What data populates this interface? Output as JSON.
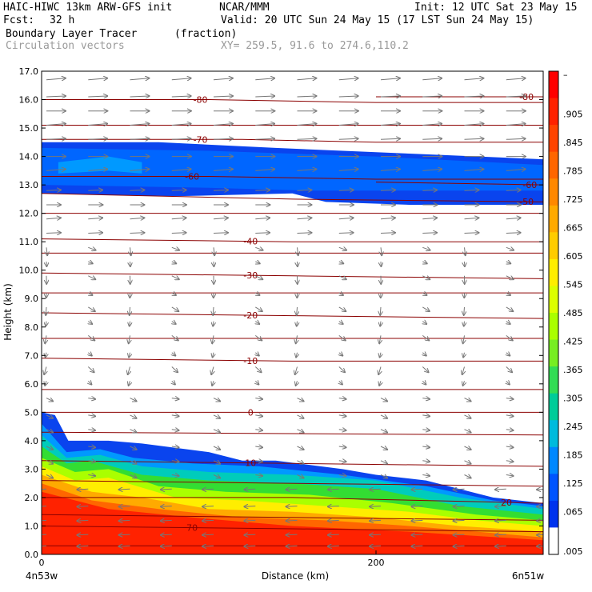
{
  "header": {
    "model": "HAIC-HIWC 13km ARW-GFS init",
    "org": "NCAR/MMM",
    "init": "Init: 12 UTC Sat 23 May 15",
    "fcst_label": "Fcst:",
    "fcst_value": "32 h",
    "valid": "Valid: 20 UTC Sun 24 May 15 (17 LST Sun 24 May 15)",
    "field": "Boundary Layer Tracer",
    "field_units": "(fraction)",
    "vectors": "Circulation vectors",
    "xy": "XY= 259.5, 91.6 to 274.6,110.2"
  },
  "chart_data": {
    "type": "heatmap",
    "xlabel": "Distance (km)",
    "ylabel": "Height (km)",
    "xlim": [
      0,
      300
    ],
    "ylim": [
      0,
      17
    ],
    "x_ticks": [
      {
        "value": 0,
        "label": "0"
      },
      {
        "value": 200,
        "label": "200"
      }
    ],
    "x_end_labels": [
      "4n53w",
      "6n51w"
    ],
    "y_ticks": [
      "0.0",
      "1.0",
      "2.0",
      "3.0",
      "4.0",
      "5.0",
      "6.0",
      "7.0",
      "8.0",
      "9.0",
      "10.0",
      "11.0",
      "12.0",
      "13.0",
      "14.0",
      "15.0",
      "16.0",
      "17.0"
    ],
    "colorbar": {
      "labels": [
        "–",
        ".905",
        ".845",
        ".785",
        ".725",
        ".665",
        ".605",
        ".545",
        ".485",
        ".425",
        ".365",
        ".305",
        ".245",
        ".185",
        ".125",
        ".065",
        ".005"
      ],
      "colors": [
        "#ff0000",
        "#ff2200",
        "#ff4400",
        "#ff6600",
        "#ff8800",
        "#ffaa00",
        "#ffcc00",
        "#ffee00",
        "#ddff00",
        "#aaff00",
        "#77ee22",
        "#33dd55",
        "#00cc99",
        "#00bbdd",
        "#0088ff",
        "#0055ff",
        "#0033ee",
        "#ffffff"
      ]
    },
    "tracer_layers": [
      {
        "color": "#0a44ee",
        "top": [
          [
            0,
            5.0
          ],
          [
            8,
            4.9
          ],
          [
            16,
            4.0
          ],
          [
            40,
            4.0
          ],
          [
            60,
            3.9
          ],
          [
            100,
            3.6
          ],
          [
            120,
            3.3
          ],
          [
            140,
            3.3
          ],
          [
            180,
            3.0
          ],
          [
            200,
            2.8
          ],
          [
            230,
            2.6
          ],
          [
            250,
            2.3
          ],
          [
            270,
            2.0
          ],
          [
            300,
            1.8
          ]
        ]
      },
      {
        "color": "#0099ff",
        "top": [
          [
            0,
            4.6
          ],
          [
            15,
            3.6
          ],
          [
            35,
            3.7
          ],
          [
            55,
            3.4
          ],
          [
            90,
            3.2
          ],
          [
            130,
            3.1
          ],
          [
            180,
            2.8
          ],
          [
            230,
            2.4
          ],
          [
            270,
            1.9
          ],
          [
            300,
            1.7
          ]
        ]
      },
      {
        "color": "#00ccbb",
        "top": [
          [
            0,
            4.2
          ],
          [
            15,
            3.4
          ],
          [
            35,
            3.5
          ],
          [
            60,
            3.1
          ],
          [
            100,
            2.9
          ],
          [
            150,
            2.8
          ],
          [
            200,
            2.6
          ],
          [
            250,
            2.0
          ],
          [
            300,
            1.6
          ]
        ]
      },
      {
        "color": "#33dd33",
        "top": [
          [
            0,
            3.8
          ],
          [
            15,
            3.2
          ],
          [
            30,
            3.3
          ],
          [
            60,
            2.8
          ],
          [
            100,
            2.6
          ],
          [
            150,
            2.5
          ],
          [
            200,
            2.3
          ],
          [
            250,
            1.7
          ],
          [
            300,
            1.4
          ]
        ]
      },
      {
        "color": "#aaff00",
        "top": [
          [
            0,
            3.4
          ],
          [
            20,
            2.9
          ],
          [
            40,
            3.0
          ],
          [
            70,
            2.4
          ],
          [
            110,
            2.2
          ],
          [
            160,
            2.1
          ],
          [
            210,
            1.8
          ],
          [
            260,
            1.4
          ],
          [
            300,
            1.2
          ]
        ]
      },
      {
        "color": "#ffee00",
        "top": [
          [
            0,
            3.1
          ],
          [
            20,
            2.6
          ],
          [
            40,
            2.7
          ],
          [
            80,
            2.0
          ],
          [
            120,
            1.9
          ],
          [
            170,
            1.7
          ],
          [
            220,
            1.5
          ],
          [
            260,
            1.2
          ],
          [
            300,
            1.0
          ]
        ]
      },
      {
        "color": "#ffaa00",
        "top": [
          [
            0,
            2.8
          ],
          [
            30,
            2.2
          ],
          [
            60,
            2.0
          ],
          [
            100,
            1.6
          ],
          [
            150,
            1.5
          ],
          [
            200,
            1.3
          ],
          [
            250,
            1.0
          ],
          [
            300,
            0.8
          ]
        ]
      },
      {
        "color": "#ff6600",
        "top": [
          [
            0,
            2.5
          ],
          [
            30,
            1.9
          ],
          [
            70,
            1.6
          ],
          [
            120,
            1.3
          ],
          [
            170,
            1.2
          ],
          [
            220,
            1.0
          ],
          [
            300,
            0.6
          ]
        ]
      },
      {
        "color": "#ff2200",
        "top": [
          [
            0,
            2.2
          ],
          [
            40,
            1.6
          ],
          [
            90,
            1.3
          ],
          [
            150,
            1.0
          ],
          [
            220,
            0.8
          ],
          [
            300,
            0.5
          ]
        ]
      }
    ],
    "upper_band": [
      {
        "color": "#0a44ee",
        "bottom": [
          [
            0,
            12.7
          ],
          [
            80,
            12.6
          ],
          [
            150,
            12.7
          ],
          [
            170,
            12.4
          ],
          [
            220,
            12.3
          ],
          [
            300,
            12.3
          ]
        ],
        "top": [
          [
            0,
            14.5
          ],
          [
            70,
            14.5
          ],
          [
            140,
            14.3
          ],
          [
            220,
            14.1
          ],
          [
            300,
            13.9
          ]
        ]
      },
      {
        "color": "#0066ff",
        "bottom": [
          [
            0,
            13.0
          ],
          [
            100,
            12.9
          ],
          [
            160,
            12.8
          ],
          [
            240,
            12.8
          ],
          [
            300,
            12.8
          ]
        ],
        "top": [
          [
            0,
            14.3
          ],
          [
            100,
            14.2
          ],
          [
            200,
            14.0
          ],
          [
            300,
            13.7
          ]
        ]
      },
      {
        "color": "#0099ff",
        "bottom": [
          [
            10,
            13.4
          ],
          [
            40,
            13.5
          ],
          [
            60,
            13.4
          ]
        ],
        "top": [
          [
            10,
            13.8
          ],
          [
            40,
            14.0
          ],
          [
            60,
            13.8
          ]
        ]
      }
    ],
    "contours": [
      {
        "label": "-80",
        "label_x": 95,
        "points": [
          [
            0,
            16.0
          ],
          [
            100,
            16.0
          ],
          [
            200,
            15.9
          ],
          [
            300,
            15.9
          ]
        ]
      },
      {
        "label": "-80",
        "label_x": 290,
        "points": [
          [
            200,
            16.1
          ],
          [
            300,
            16.1
          ]
        ]
      },
      {
        "label": "-70",
        "label_x": 95,
        "points": [
          [
            0,
            14.6
          ],
          [
            120,
            14.6
          ],
          [
            200,
            14.5
          ],
          [
            300,
            14.5
          ]
        ]
      },
      {
        "label": "-60",
        "label_x": 90,
        "points": [
          [
            0,
            13.3
          ],
          [
            100,
            13.3
          ],
          [
            200,
            13.2
          ],
          [
            300,
            13.2
          ]
        ]
      },
      {
        "label": "-60",
        "label_x": 292,
        "points": [
          [
            200,
            13.1
          ],
          [
            300,
            13.0
          ]
        ]
      },
      {
        "label": "-50",
        "label_x": 290,
        "points": [
          [
            0,
            12.7
          ],
          [
            150,
            12.5
          ],
          [
            300,
            12.4
          ]
        ]
      },
      {
        "label": "-40",
        "label_x": 125,
        "points": [
          [
            0,
            11.1
          ],
          [
            150,
            11.0
          ],
          [
            300,
            11.0
          ]
        ]
      },
      {
        "label": "-30",
        "label_x": 125,
        "points": [
          [
            0,
            9.9
          ],
          [
            150,
            9.8
          ],
          [
            300,
            9.7
          ]
        ]
      },
      {
        "label": "-20",
        "label_x": 125,
        "points": [
          [
            0,
            8.5
          ],
          [
            150,
            8.4
          ],
          [
            300,
            8.3
          ]
        ]
      },
      {
        "label": "-10",
        "label_x": 125,
        "points": [
          [
            0,
            6.9
          ],
          [
            150,
            6.8
          ],
          [
            300,
            6.8
          ]
        ]
      },
      {
        "label": "0",
        "label_x": 125,
        "points": [
          [
            0,
            5.0
          ],
          [
            150,
            5.0
          ],
          [
            300,
            5.0
          ]
        ]
      },
      {
        "label": "10",
        "label_x": 125,
        "points": [
          [
            0,
            3.3
          ],
          [
            150,
            3.2
          ],
          [
            300,
            3.1
          ]
        ]
      },
      {
        "label": "20",
        "label_x": 278,
        "points": [
          [
            0,
            2.0
          ],
          [
            150,
            2.0
          ],
          [
            300,
            1.8
          ]
        ]
      },
      {
        "label": "70",
        "label_x": 90,
        "points": [
          [
            0,
            1.0
          ],
          [
            150,
            0.9
          ],
          [
            300,
            0.8
          ]
        ]
      }
    ],
    "extra_lines": [
      {
        "points": [
          [
            0,
            15.1
          ],
          [
            300,
            15.1
          ]
        ]
      },
      {
        "points": [
          [
            0,
            12.0
          ],
          [
            300,
            12.0
          ]
        ]
      },
      {
        "points": [
          [
            0,
            10.6
          ],
          [
            300,
            10.6
          ]
        ]
      },
      {
        "points": [
          [
            0,
            9.2
          ],
          [
            300,
            9.2
          ]
        ]
      },
      {
        "points": [
          [
            0,
            7.6
          ],
          [
            300,
            7.6
          ]
        ]
      },
      {
        "points": [
          [
            0,
            5.8
          ],
          [
            300,
            5.8
          ]
        ]
      },
      {
        "points": [
          [
            0,
            4.3
          ],
          [
            300,
            4.2
          ]
        ]
      },
      {
        "points": [
          [
            0,
            2.6
          ],
          [
            300,
            2.4
          ]
        ]
      },
      {
        "points": [
          [
            0,
            1.4
          ],
          [
            300,
            1.2
          ]
        ]
      },
      {
        "points": [
          [
            0,
            0.3
          ],
          [
            300,
            0.3
          ]
        ]
      }
    ],
    "vectors": {
      "x_spacing_km": 25,
      "levels_km": [
        16.7,
        16.1,
        15.6,
        15.1,
        14.6,
        14.0,
        13.5,
        12.8,
        12.3,
        11.8,
        11.3,
        10.8,
        10.3,
        9.8,
        9.2,
        8.7,
        8.2,
        7.7,
        7.1,
        6.6,
        6.1,
        5.5,
        4.9,
        4.4,
        3.8,
        3.3,
        2.8,
        2.3,
        1.7,
        1.2,
        0.7,
        0.3
      ]
    }
  }
}
